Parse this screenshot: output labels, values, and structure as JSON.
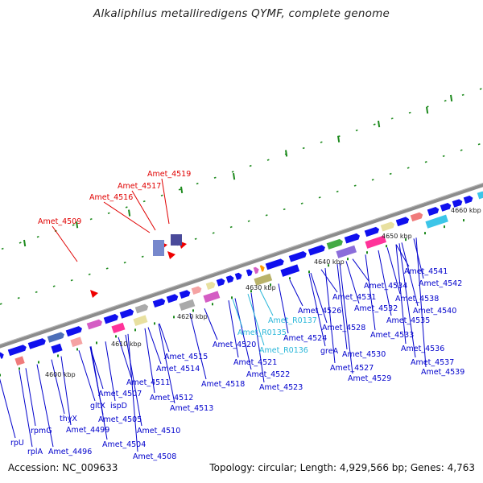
{
  "header": {
    "title": "Alkaliphilus metalliredigens QYMF, complete genome"
  },
  "footer": {
    "accession": "Accession: NC_009633",
    "summary": "Topology: circular; Length: 4,929,566 bp; Genes: 4,763"
  },
  "map": {
    "backbone_color": "#8c8c8c",
    "forward_gene_color": "#1010ee",
    "rna_label_color": "#27b6d9",
    "selected_label_color": "#e00000",
    "gene_label_color": "#0000cc",
    "tick_labels": [
      "4600 kbp",
      "4610 kbp",
      "4620 kbp",
      "4630 kbp",
      "4640 kbp",
      "4650 kbp",
      "4660 kbp"
    ],
    "selected_genes": [
      "Amet_4509",
      "Amet_4516",
      "Amet_4517",
      "Amet_4519"
    ],
    "gene_labels": [
      "rpU",
      "rplA",
      "rpmG",
      "Amet_4496",
      "thyX",
      "Amet_4499",
      "Amet_4504",
      "Amet_4505",
      "Amet_4508",
      "gltX",
      "Amet_4507",
      "ispD",
      "Amet_4510",
      "Amet_4511",
      "Amet_4512",
      "Amet_4513",
      "Amet_4514",
      "Amet_4515",
      "Amet_4518",
      "Amet_4520",
      "Amet_4521",
      "Amet_4522",
      "Amet_4523",
      "Amet_R0135",
      "Amet_R0136",
      "Amet_R0137",
      "Amet_4524",
      "greA",
      "Amet_4526",
      "Amet_4527",
      "Amet_4528",
      "Amet_4529",
      "Amet_4530",
      "Amet_4531",
      "Amet_4532",
      "Amet_4533",
      "Amet_4534",
      "Amet_4535",
      "Amet_4536",
      "Amet_4537",
      "Amet_4538",
      "Amet_4539",
      "Amet_4540",
      "Amet_4541",
      "Amet_4542"
    ]
  }
}
